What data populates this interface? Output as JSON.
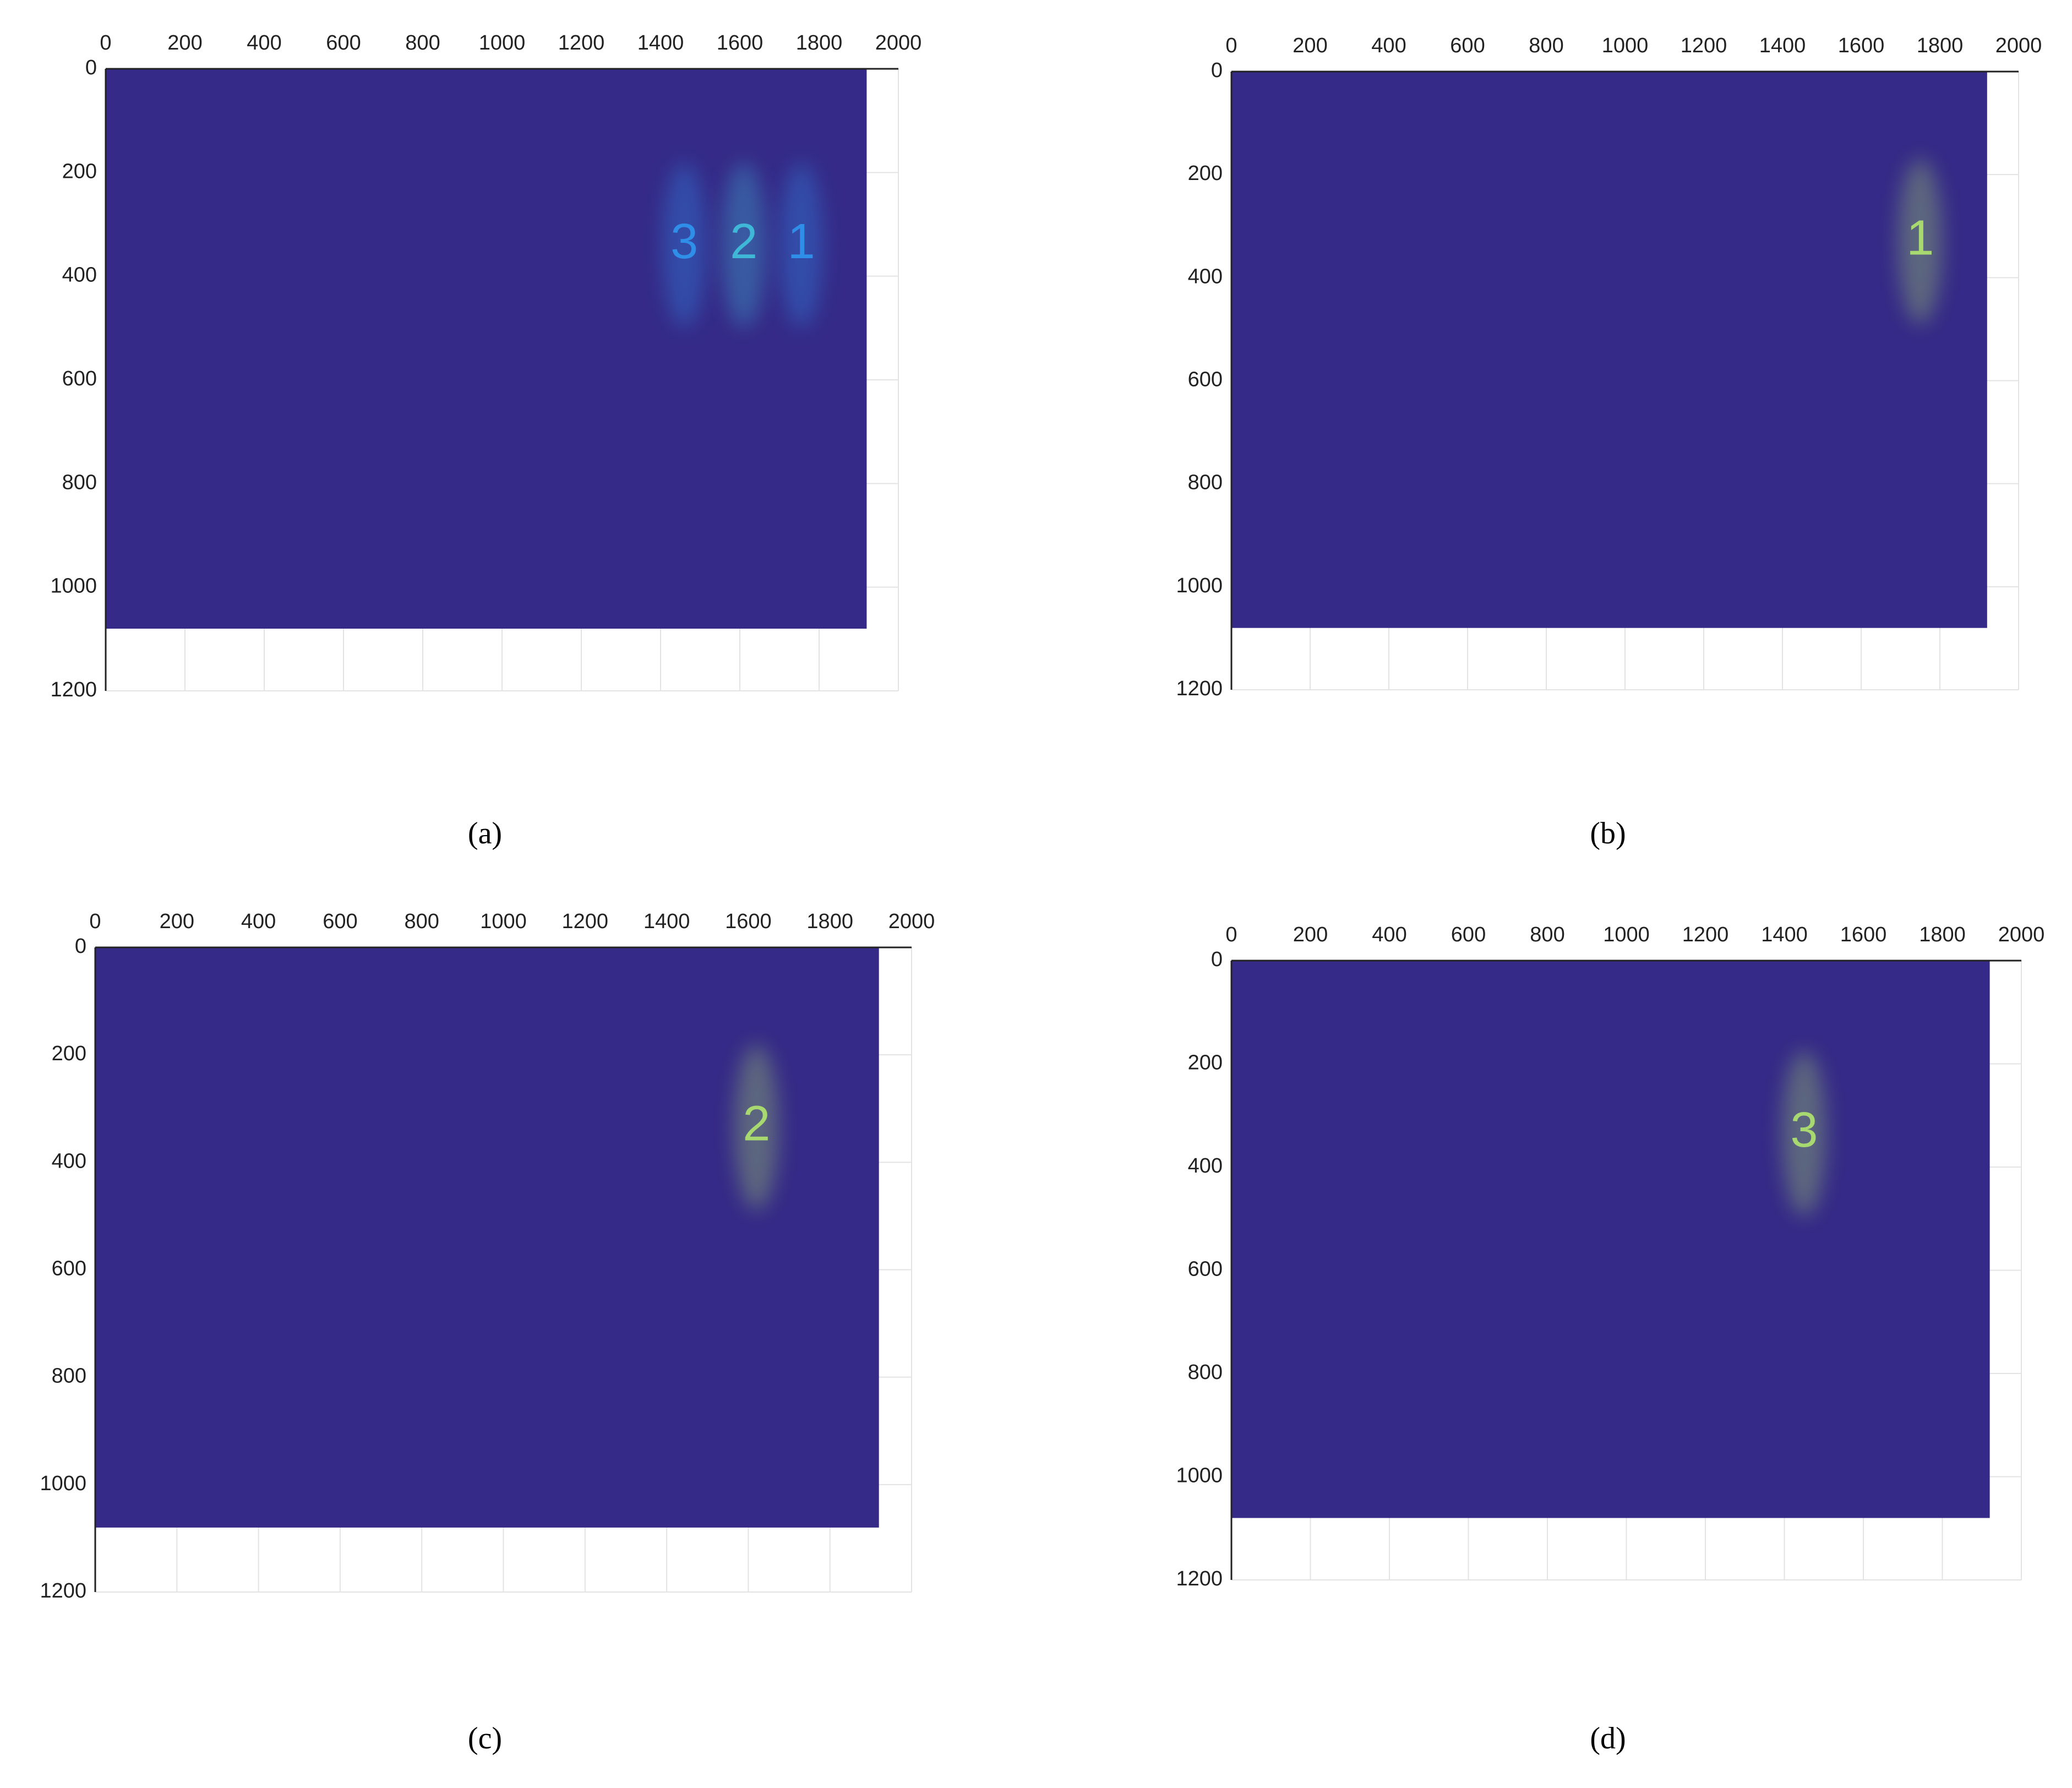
{
  "chart_data": [
    {
      "type": "image",
      "label": "(a)",
      "xlim": [
        0,
        2000
      ],
      "ylim": [
        1200,
        0
      ],
      "xticks": [
        0,
        200,
        400,
        600,
        800,
        1000,
        1200,
        1400,
        1600,
        1800,
        2000
      ],
      "yticks": [
        0,
        200,
        400,
        600,
        800,
        1000,
        1200
      ],
      "extent": {
        "x": [
          0,
          1920
        ],
        "y": [
          0,
          1080
        ]
      },
      "color": "#352a87",
      "grid": true,
      "annotations": [
        {
          "text": "3",
          "x": 1460,
          "y": 340,
          "color": "#2f8fe8"
        },
        {
          "text": "2",
          "x": 1610,
          "y": 340,
          "color": "#3fb8d8"
        },
        {
          "text": "1",
          "x": 1755,
          "y": 340,
          "color": "#2f8fe8"
        }
      ]
    },
    {
      "type": "image",
      "label": "(b)",
      "xlim": [
        0,
        2000
      ],
      "ylim": [
        1200,
        0
      ],
      "xticks": [
        0,
        200,
        400,
        600,
        800,
        1000,
        1200,
        1400,
        1600,
        1800,
        2000
      ],
      "yticks": [
        0,
        200,
        400,
        600,
        800,
        1000,
        1200
      ],
      "extent": {
        "x": [
          0,
          1920
        ],
        "y": [
          0,
          1080
        ]
      },
      "color": "#352a87",
      "grid": true,
      "annotations": [
        {
          "text": "1",
          "x": 1750,
          "y": 330,
          "color": "#a8d870"
        }
      ]
    },
    {
      "type": "image",
      "label": "(c)",
      "xlim": [
        0,
        2000
      ],
      "ylim": [
        1200,
        0
      ],
      "xticks": [
        0,
        200,
        400,
        600,
        800,
        1000,
        1200,
        1400,
        1600,
        1800,
        2000
      ],
      "yticks": [
        0,
        200,
        400,
        600,
        800,
        1000,
        1200
      ],
      "extent": {
        "x": [
          0,
          1920
        ],
        "y": [
          0,
          1080
        ]
      },
      "color": "#352a87",
      "grid": true,
      "annotations": [
        {
          "text": "2",
          "x": 1620,
          "y": 335,
          "color": "#a8d870"
        }
      ]
    },
    {
      "type": "image",
      "label": "(d)",
      "xlim": [
        0,
        2000
      ],
      "ylim": [
        1200,
        0
      ],
      "xticks": [
        0,
        200,
        400,
        600,
        800,
        1000,
        1200,
        1400,
        1600,
        1800,
        2000
      ],
      "yticks": [
        0,
        200,
        400,
        600,
        800,
        1000,
        1200
      ],
      "extent": {
        "x": [
          0,
          1920
        ],
        "y": [
          0,
          1080
        ]
      },
      "color": "#352a87",
      "grid": true,
      "annotations": [
        {
          "text": "3",
          "x": 1450,
          "y": 335,
          "color": "#a8d870"
        }
      ]
    }
  ]
}
